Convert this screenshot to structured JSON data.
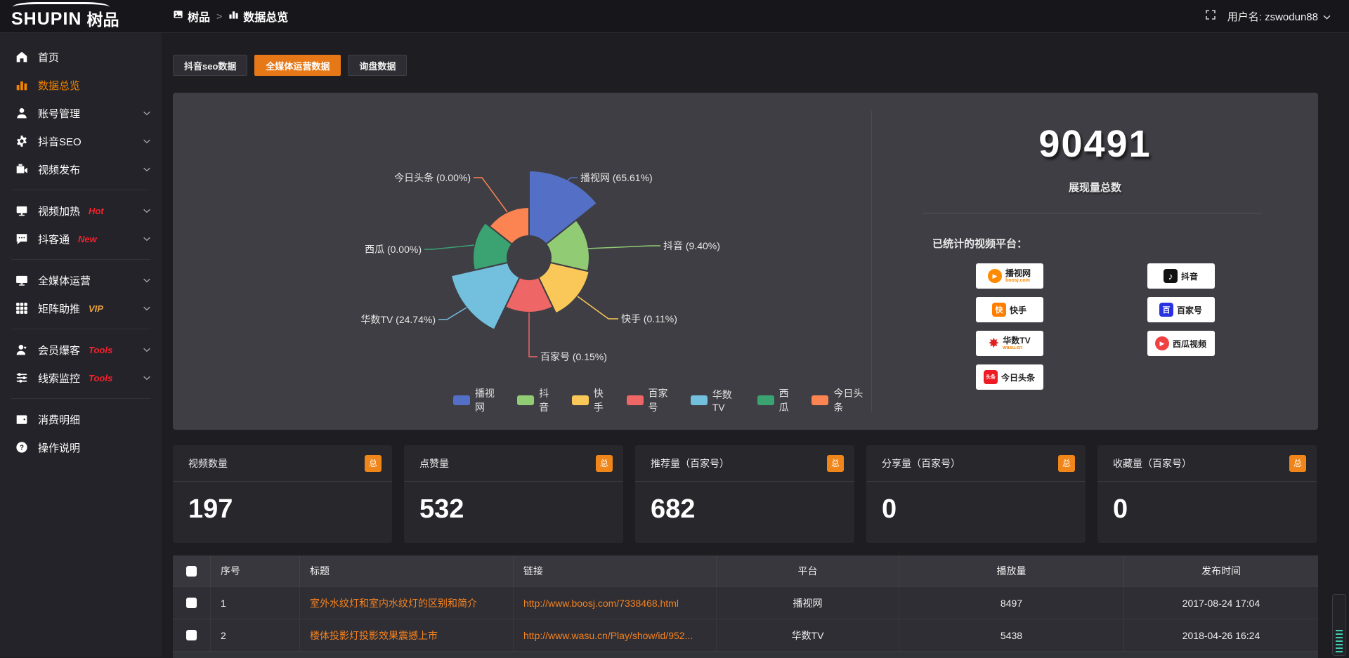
{
  "topbar": {
    "logo_en": "SHUPIN",
    "logo_cn": "树品",
    "breadcrumb": [
      {
        "label": "树品",
        "icon": "app-icon"
      },
      {
        "label": "数据总览",
        "icon": "bar-chart-icon"
      }
    ],
    "breadcrumb_separator": ">",
    "username": "用户名: zswodun88"
  },
  "sidebar": {
    "items": [
      {
        "label": "首页",
        "icon": "home-icon",
        "active": false,
        "chevron": false,
        "divider_after": false
      },
      {
        "label": "数据总览",
        "icon": "bar-chart-icon",
        "active": true,
        "chevron": false,
        "divider_after": false
      },
      {
        "label": "账号管理",
        "icon": "user-icon",
        "active": false,
        "chevron": true,
        "divider_after": false
      },
      {
        "label": "抖音SEO",
        "icon": "gear-icon",
        "active": false,
        "chevron": true,
        "divider_after": false
      },
      {
        "label": "视频发布",
        "icon": "video-upload-icon",
        "active": false,
        "chevron": true,
        "divider_after": true
      },
      {
        "label": "视频加热",
        "icon": "video-heat-icon",
        "badge": "Hot",
        "badge_color": "#f5222d",
        "active": false,
        "chevron": true,
        "divider_after": false
      },
      {
        "label": "抖客通",
        "icon": "chat-icon",
        "badge": "New",
        "badge_color": "#f5222d",
        "active": false,
        "chevron": true,
        "divider_after": true
      },
      {
        "label": "全媒体运营",
        "icon": "monitor-icon",
        "active": false,
        "chevron": true,
        "divider_after": false
      },
      {
        "label": "矩阵助推",
        "icon": "grid-icon",
        "badge": "VIP",
        "badge_color": "#e8a33d",
        "active": false,
        "chevron": true,
        "divider_after": true
      },
      {
        "label": "会员爆客",
        "icon": "member-icon",
        "badge": "Tools",
        "badge_color": "#f5222d",
        "active": false,
        "chevron": true,
        "divider_after": false
      },
      {
        "label": "线索监控",
        "icon": "leads-icon",
        "badge": "Tools",
        "badge_color": "#f5222d",
        "active": false,
        "chevron": true,
        "divider_after": true
      },
      {
        "label": "消费明细",
        "icon": "wallet-icon",
        "active": false,
        "chevron": false,
        "divider_after": false
      },
      {
        "label": "操作说明",
        "icon": "question-icon",
        "active": false,
        "chevron": false,
        "divider_after": false
      }
    ]
  },
  "tabs": [
    {
      "label": "抖音seo数据",
      "active": false
    },
    {
      "label": "全媒体运营数据",
      "active": true
    },
    {
      "label": "询盘数据",
      "active": false
    }
  ],
  "chart_data": {
    "type": "pie",
    "subtype": "nightingale-rose",
    "inner_radius": 31,
    "legend_position": "bottom",
    "slices": [
      {
        "name": "播视网",
        "pct": "65.61",
        "color": "#5470c6",
        "radius_hint": 124
      },
      {
        "name": "抖音",
        "pct": "9.40",
        "color": "#91cc75",
        "radius_hint": 86
      },
      {
        "name": "快手",
        "pct": "0.11",
        "color": "#fac858",
        "radius_hint": 88
      },
      {
        "name": "百家号",
        "pct": "0.15",
        "color": "#ee6666",
        "radius_hint": 78
      },
      {
        "name": "华数TV",
        "pct": "24.74",
        "color": "#73c0de",
        "radius_hint": 114
      },
      {
        "name": "西瓜",
        "pct": "0.00",
        "color": "#3ba272",
        "radius_hint": 80
      },
      {
        "name": "今日头条",
        "pct": "0.00",
        "color": "#fc8452",
        "radius_hint": 72
      }
    ],
    "legend": [
      "播视网",
      "抖音",
      "快手",
      "百家号",
      "华数TV",
      "西瓜",
      "今日头条"
    ]
  },
  "summary": {
    "total_value": "90491",
    "total_label": "展现量总数",
    "platforms_label": "已统计的视频平台：",
    "platforms": [
      {
        "name": "播视网",
        "sub": "boosj.com",
        "icon": "play-circle",
        "color": "#ff8a00",
        "sub_color": "#ff8a00"
      },
      {
        "name": "抖音",
        "icon": "music-note",
        "color": "#111111"
      },
      {
        "name": "快手",
        "icon": "kuai-glyph",
        "color": "#ff7e00"
      },
      {
        "name": "百家号",
        "icon": "bai-glyph",
        "color": "#2932e1"
      },
      {
        "name": "华数TV",
        "sub": "wasu.cn",
        "icon": "star-burst",
        "color": "#e02020",
        "sub_color": "#f08300"
      },
      {
        "name": "西瓜视频",
        "icon": "play-circle",
        "color": "#f04142"
      },
      {
        "name": "今日头条",
        "icon": "toutiao-glyph",
        "color": "#ed1c24"
      }
    ]
  },
  "stat_cards": [
    {
      "label": "视频数量",
      "badge": "总",
      "value": "197"
    },
    {
      "label": "点赞量",
      "badge": "总",
      "value": "532"
    },
    {
      "label": "推荐量（百家号）",
      "badge": "总",
      "value": "682"
    },
    {
      "label": "分享量（百家号）",
      "badge": "总",
      "value": "0"
    },
    {
      "label": "收藏量（百家号）",
      "badge": "总",
      "value": "0"
    }
  ],
  "table": {
    "headers": [
      "",
      "序号",
      "标题",
      "链接",
      "平台",
      "播放量",
      "发布时间"
    ],
    "rows": [
      {
        "no": "1",
        "title": "室外水纹灯和室内水纹灯的区别和简介",
        "link": "http://www.boosj.com/7338468.html",
        "platform": "播视网",
        "views": "8497",
        "time": "2017-08-24 17:04"
      },
      {
        "no": "2",
        "title": "楼体投影灯投影效果震撼上市",
        "link": "http://www.wasu.cn/Play/show/id/952...",
        "platform": "华数TV",
        "views": "5438",
        "time": "2018-04-26 16:24"
      }
    ]
  }
}
